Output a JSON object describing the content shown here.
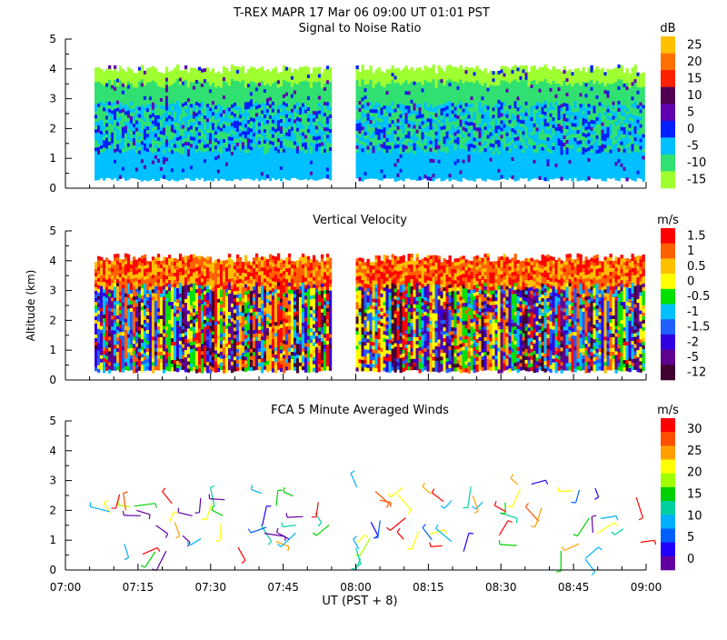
{
  "header": {
    "title": "T-REX   MAPR 17 Mar 06   09:00 UT   01:01   PST",
    "xlabel": "UT  (PST + 8)"
  },
  "x_ticks": [
    "07:00",
    "07:15",
    "07:30",
    "07:45",
    "08:00",
    "08:15",
    "08:30",
    "08:45",
    "09:00"
  ],
  "y_ticks": [
    "0",
    "1",
    "2",
    "3",
    "4",
    "5"
  ],
  "ylabel": "Altitude (km)",
  "chart_data": [
    {
      "type": "heatmap",
      "title": "Signal to Noise Ratio",
      "ylabel": "",
      "xlim": [
        0,
        120
      ],
      "ylim": [
        0,
        5
      ],
      "data_top_km": 3.9,
      "data_bottom_km": 0.35,
      "gap_minutes": [
        55,
        60
      ],
      "colorbar": {
        "unit": "dB",
        "levels": [
          "25",
          "20",
          "15",
          "10",
          "5",
          "0",
          "-5",
          "-10",
          "-15"
        ],
        "colors": [
          "#ffc000",
          "#ff7000",
          "#ff2000",
          "#500050",
          "#6000b0",
          "#0020ff",
          "#00c0ff",
          "#30e070",
          "#a0ff30"
        ]
      }
    },
    {
      "type": "heatmap",
      "title": "Vertical Velocity",
      "ylabel": "Altitude (km)",
      "xlim": [
        0,
        120
      ],
      "ylim": [
        0,
        5
      ],
      "data_top_km": 4.0,
      "data_bottom_km": 0.35,
      "gap_minutes": [
        55,
        60
      ],
      "colorbar": {
        "unit": "m/s",
        "levels": [
          "1.5",
          "1",
          "0.5",
          "0",
          "-0.5",
          "-1",
          "-1.5",
          "-2",
          "-5",
          "-12"
        ],
        "colors": [
          "#ff0000",
          "#ff6000",
          "#ffc000",
          "#ffff00",
          "#00e000",
          "#00c0ff",
          "#2060ff",
          "#3000e0",
          "#600090",
          "#400030"
        ]
      }
    },
    {
      "type": "scatter",
      "title": "FCA 5 Minute Averaged Winds",
      "ylabel": "",
      "xlim": [
        0,
        120
      ],
      "ylim": [
        0,
        5
      ],
      "note": "wind barbs",
      "colorbar": {
        "unit": "m/s",
        "levels": [
          "30",
          "25",
          "20",
          "15",
          "10",
          "5",
          "0"
        ],
        "colors": [
          "#ff0000",
          "#ff5000",
          "#ffa000",
          "#ffff00",
          "#a0ff00",
          "#00d000",
          "#00d0a0",
          "#00b0ff",
          "#0060ff",
          "#2000ff",
          "#6000a0"
        ]
      }
    }
  ]
}
